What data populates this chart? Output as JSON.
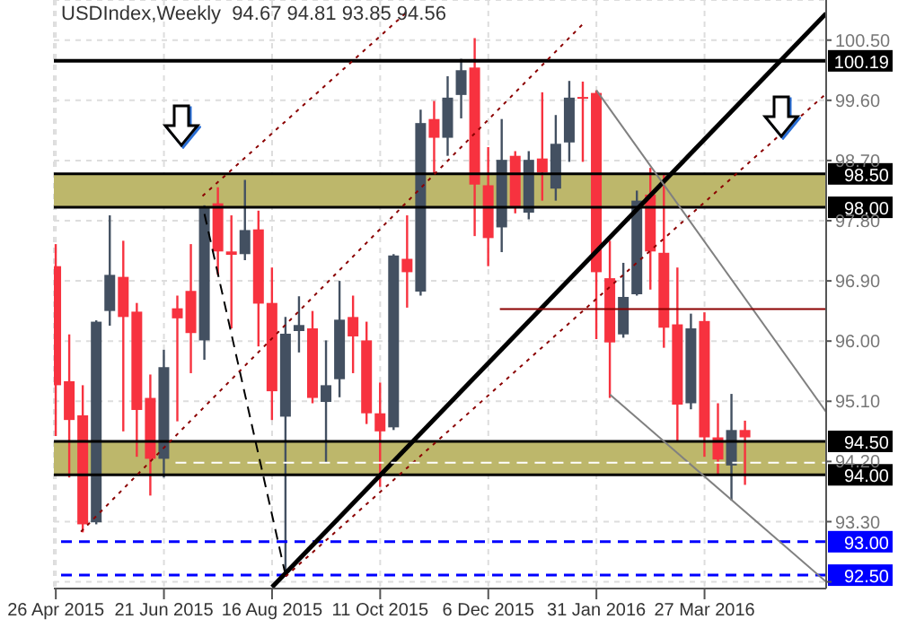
{
  "chart_data": {
    "type": "candlestick",
    "title": "USDIndex,Weekly  94.67 94.81 93.85 94.56",
    "x": [
      "2015-04-26",
      "2015-05-03",
      "2015-05-10",
      "2015-05-17",
      "2015-05-24",
      "2015-05-31",
      "2015-06-07",
      "2015-06-14",
      "2015-06-21",
      "2015-06-28",
      "2015-07-05",
      "2015-07-12",
      "2015-07-19",
      "2015-07-26",
      "2015-08-02",
      "2015-08-09",
      "2015-08-16",
      "2015-08-23",
      "2015-08-30",
      "2015-09-06",
      "2015-09-13",
      "2015-09-20",
      "2015-09-27",
      "2015-10-04",
      "2015-10-11",
      "2015-10-18",
      "2015-10-25",
      "2015-11-01",
      "2015-11-08",
      "2015-11-15",
      "2015-11-22",
      "2015-11-29",
      "2015-12-06",
      "2015-12-13",
      "2015-12-20",
      "2015-12-27",
      "2016-01-03",
      "2016-01-10",
      "2016-01-17",
      "2016-01-24",
      "2016-01-31",
      "2016-02-07",
      "2016-02-14",
      "2016-02-21",
      "2016-02-28",
      "2016-03-06",
      "2016-03-13",
      "2016-03-20",
      "2016-03-27",
      "2016-04-03",
      "2016-04-10",
      "2016-04-17"
    ],
    "ohlc": [
      [
        97.12,
        97.45,
        94.58,
        95.34
      ],
      [
        95.4,
        96.1,
        93.96,
        94.82
      ],
      [
        94.89,
        95.34,
        93.14,
        93.26
      ],
      [
        93.29,
        96.31,
        93.26,
        96.29
      ],
      [
        96.45,
        97.88,
        96.23,
        96.99
      ],
      [
        96.96,
        97.5,
        94.65,
        96.36
      ],
      [
        96.44,
        96.57,
        94.27,
        94.97
      ],
      [
        95.15,
        95.5,
        93.69,
        94.24
      ],
      [
        94.24,
        95.87,
        93.96,
        95.61
      ],
      [
        96.49,
        96.68,
        94.8,
        96.34
      ],
      [
        96.75,
        97.45,
        95.52,
        96.12
      ],
      [
        96.01,
        98.03,
        95.72,
        97.99
      ],
      [
        98.06,
        98.3,
        96.99,
        97.34
      ],
      [
        97.34,
        97.88,
        96.19,
        97.29
      ],
      [
        97.3,
        98.41,
        97.21,
        97.66
      ],
      [
        97.67,
        97.95,
        95.92,
        96.56
      ],
      [
        96.57,
        97.1,
        94.82,
        95.25
      ],
      [
        94.87,
        96.36,
        92.5,
        96.11
      ],
      [
        96.15,
        96.67,
        95.83,
        96.24
      ],
      [
        96.19,
        96.45,
        95.07,
        95.15
      ],
      [
        95.09,
        96.01,
        94.18,
        95.34
      ],
      [
        95.43,
        96.9,
        95.16,
        96.32
      ],
      [
        96.36,
        96.68,
        95.52,
        96.07
      ],
      [
        96.01,
        96.29,
        94.76,
        94.92
      ],
      [
        94.92,
        95.38,
        93.82,
        94.65
      ],
      [
        94.71,
        97.3,
        94.67,
        97.28
      ],
      [
        97.23,
        97.88,
        96.5,
        97.03
      ],
      [
        96.74,
        99.46,
        96.68,
        99.26
      ],
      [
        99.32,
        99.59,
        98.49,
        99.04
      ],
      [
        99.04,
        99.96,
        98.77,
        99.64
      ],
      [
        99.68,
        100.22,
        99.33,
        100.05
      ],
      [
        100.09,
        100.53,
        97.57,
        98.34
      ],
      [
        98.33,
        98.9,
        97.12,
        97.54
      ],
      [
        97.7,
        99.32,
        97.33,
        98.71
      ],
      [
        98.77,
        98.84,
        97.91,
        97.99
      ],
      [
        97.92,
        98.84,
        97.82,
        98.71
      ],
      [
        98.73,
        99.72,
        98.1,
        98.52
      ],
      [
        98.28,
        99.38,
        98.1,
        98.95
      ],
      [
        98.97,
        99.89,
        98.68,
        99.64
      ],
      [
        99.65,
        99.88,
        98.68,
        99.63
      ],
      [
        99.71,
        99.75,
        96.03,
        97.03
      ],
      [
        96.94,
        97.5,
        95.15,
        95.98
      ],
      [
        96.1,
        97.17,
        96.05,
        96.66
      ],
      [
        96.7,
        98.25,
        96.68,
        98.1
      ],
      [
        98.19,
        98.59,
        96.77,
        97.34
      ],
      [
        97.32,
        98.49,
        95.9,
        96.2
      ],
      [
        96.25,
        97.1,
        94.49,
        95.05
      ],
      [
        95.07,
        96.41,
        94.98,
        96.19
      ],
      [
        96.3,
        96.43,
        94.27,
        94.56
      ],
      [
        94.56,
        95.07,
        94.0,
        94.23
      ],
      [
        94.14,
        95.21,
        93.62,
        94.67
      ],
      [
        94.67,
        94.81,
        93.85,
        94.56
      ]
    ],
    "colors": [
      "#f7323f",
      "#f7323f",
      "#f7323f",
      "#435061",
      "#435061",
      "#f7323f",
      "#f7323f",
      "#f7323f",
      "#435061",
      "#f7323f",
      "#f7323f",
      "#435061",
      "#f7323f",
      "#f7323f",
      "#435061",
      "#f7323f",
      "#f7323f",
      "#435061",
      "#435061",
      "#f7323f",
      "#435061",
      "#435061",
      "#f7323f",
      "#f7323f",
      "#f7323f",
      "#435061",
      "#f7323f",
      "#435061",
      "#f7323f",
      "#435061",
      "#435061",
      "#f7323f",
      "#f7323f",
      "#435061",
      "#f7323f",
      "#435061",
      "#f7323f",
      "#435061",
      "#435061",
      "#f7323f",
      "#f7323f",
      "#f7323f",
      "#435061",
      "#435061",
      "#f7323f",
      "#f7323f",
      "#f7323f",
      "#435061",
      "#f7323f",
      "#f7323f",
      "#435061",
      "#f7323f"
    ],
    "series": [
      {
        "type": "line",
        "color": "#000000",
        "line_style": "solid",
        "x": [
          "2015-08-16",
          "2016-05-29"
        ],
        "values": [
          92.32,
          100.9
        ]
      },
      {
        "type": "line",
        "color": "#8b0000",
        "line_style": "dotted",
        "x": [
          "2015-07-11",
          "2015-10-26"
        ],
        "values": [
          98.17,
          100.95
        ]
      },
      {
        "type": "line",
        "color": "#8b0000",
        "line_style": "dotted",
        "x": [
          "2015-05-09",
          "2016-01-25"
        ],
        "values": [
          93.15,
          100.77
        ]
      },
      {
        "type": "line",
        "color": "#8b0000",
        "line_style": "dotted",
        "x": [
          "2015-08-23",
          "2016-05-29"
        ],
        "values": [
          92.48,
          99.7
        ]
      },
      {
        "type": "line",
        "color": "#808080",
        "line_style": "solid",
        "x": [
          "2016-01-31",
          "2016-05-29"
        ],
        "values": [
          99.75,
          94.94
        ]
      },
      {
        "type": "line",
        "color": "#808080",
        "line_style": "solid",
        "x": [
          "2016-02-07",
          "2016-05-29"
        ],
        "values": [
          95.2,
          92.4
        ]
      },
      {
        "type": "line",
        "color": "#000000",
        "line_style": "dashed",
        "x": [
          "2015-07-12",
          "2015-08-23"
        ],
        "values": [
          97.9,
          92.5
        ]
      },
      {
        "type": "line",
        "color": "#8b0000",
        "line_style": "solid",
        "x": [
          "2015-12-12",
          "2016-05-29"
        ],
        "values": [
          96.48,
          96.48
        ]
      },
      {
        "type": "line",
        "color": "#ffffff",
        "line_style": "dashed",
        "x": [
          "2015-06-27",
          "2016-05-29"
        ],
        "values": [
          94.18,
          94.18
        ]
      }
    ],
    "ref_lines": [
      {
        "axis": "y",
        "value": 100.19,
        "label": "100.19",
        "color": "#000000"
      },
      {
        "axis": "y",
        "value": 98.5,
        "label": "98.50",
        "color": "#000000"
      },
      {
        "axis": "y",
        "value": 98.0,
        "label": "98.00",
        "color": "#000000"
      },
      {
        "axis": "y",
        "value": 94.5,
        "label": "94.50",
        "color": "#000000"
      },
      {
        "axis": "y",
        "value": 94.0,
        "label": "94.00",
        "color": "#000000"
      },
      {
        "axis": "y",
        "value": 93.0,
        "label": "93.00",
        "color": "#0000ff",
        "line_style": "dashed"
      },
      {
        "axis": "y",
        "value": 92.5,
        "label": "92.50",
        "color": "#0000ff",
        "line_style": "dashed"
      }
    ],
    "bands": [
      {
        "axis": "y",
        "from": 98.0,
        "to": 98.5,
        "color": "#bdb76b"
      },
      {
        "axis": "y",
        "from": 94.0,
        "to": 94.5,
        "color": "#bdb76b"
      }
    ],
    "xlim": [
      "2015-04-25",
      "2016-05-29"
    ],
    "xticks": [
      {
        "value": "2015-04-26",
        "label": "26 Apr 2015"
      },
      {
        "value": "2015-06-21",
        "label": "21 Jun 2015"
      },
      {
        "value": "2015-08-16",
        "label": "16 Aug 2015"
      },
      {
        "value": "2015-10-11",
        "label": "11 Oct 2015"
      },
      {
        "value": "2015-12-06",
        "label": "6 Dec 2015"
      },
      {
        "value": "2016-01-31",
        "label": "31 Jan 2016"
      },
      {
        "value": "2016-03-27",
        "label": "27 Mar 2016"
      }
    ],
    "ylim": [
      92.3,
      101.1
    ],
    "yticks": [
      {
        "value": 92.4,
        "label": null
      },
      {
        "value": 93.3,
        "label": "93.30"
      },
      {
        "value": 94.2,
        "label": "94.20"
      },
      {
        "value": 95.1,
        "label": "95.10"
      },
      {
        "value": 96.0,
        "label": "96.00"
      },
      {
        "value": 96.9,
        "label": "96.90"
      },
      {
        "value": 97.8,
        "label": "97.80"
      },
      {
        "value": 98.7,
        "label": "98.70"
      },
      {
        "value": 99.6,
        "label": "99.60"
      },
      {
        "value": 100.5,
        "label": "100.50"
      }
    ],
    "grid": true
  }
}
